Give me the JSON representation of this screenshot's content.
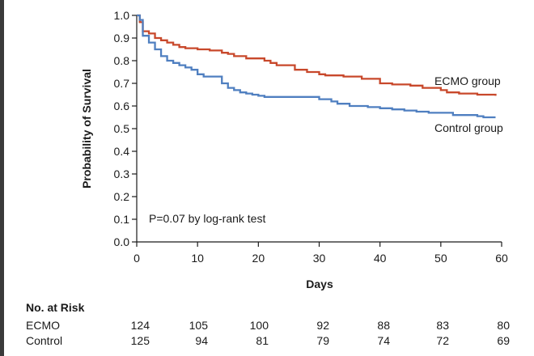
{
  "chart_data": {
    "type": "line",
    "subtype": "kaplan-meier",
    "title": "",
    "xlabel": "Days",
    "ylabel": "Probability of Survival",
    "xlim": [
      0,
      60
    ],
    "ylim": [
      0.0,
      1.0
    ],
    "x_ticks": [
      "0",
      "10",
      "20",
      "30",
      "40",
      "50",
      "60"
    ],
    "y_ticks": [
      "0.0",
      "0.1",
      "0.2",
      "0.3",
      "0.4",
      "0.5",
      "0.6",
      "0.7",
      "0.8",
      "0.9",
      "1.0"
    ],
    "annotation": "P=0.07 by log-rank test",
    "series": [
      {
        "name": "ECMO group",
        "color": "#c8482b",
        "x": [
          0,
          0.5,
          1,
          2,
          3,
          4,
          5,
          6,
          7,
          8,
          10,
          12,
          14,
          15,
          16,
          18,
          21,
          22,
          23,
          26,
          28,
          30,
          31,
          34,
          37,
          40,
          42,
          45,
          47,
          50,
          51,
          53,
          56,
          59
        ],
        "y": [
          1.0,
          0.97,
          0.93,
          0.92,
          0.9,
          0.89,
          0.88,
          0.87,
          0.86,
          0.855,
          0.85,
          0.845,
          0.835,
          0.83,
          0.82,
          0.81,
          0.8,
          0.79,
          0.78,
          0.76,
          0.75,
          0.74,
          0.735,
          0.73,
          0.72,
          0.7,
          0.695,
          0.69,
          0.68,
          0.67,
          0.66,
          0.655,
          0.65,
          0.645
        ]
      },
      {
        "name": "Control group",
        "color": "#4f7fc0",
        "x": [
          0,
          0.5,
          1,
          2,
          3,
          4,
          5,
          6,
          7,
          8,
          9,
          10,
          11,
          14,
          15,
          16,
          17,
          18,
          19,
          20,
          21,
          23,
          30,
          32,
          33,
          35,
          38,
          40,
          42,
          44,
          46,
          48,
          50,
          52,
          56,
          57,
          59
        ],
        "y": [
          1.0,
          0.98,
          0.91,
          0.88,
          0.85,
          0.82,
          0.8,
          0.79,
          0.78,
          0.77,
          0.76,
          0.74,
          0.73,
          0.7,
          0.68,
          0.67,
          0.66,
          0.655,
          0.65,
          0.645,
          0.64,
          0.64,
          0.63,
          0.62,
          0.61,
          0.6,
          0.595,
          0.59,
          0.585,
          0.58,
          0.575,
          0.57,
          0.57,
          0.56,
          0.555,
          0.55,
          0.55
        ]
      }
    ],
    "legend": [
      {
        "text": "ECMO group"
      },
      {
        "text": "Control group"
      }
    ]
  },
  "risk_table": {
    "title": "No. at Risk",
    "days": [
      0,
      10,
      20,
      30,
      40,
      50,
      60
    ],
    "rows": [
      {
        "label": "ECMO",
        "values": [
          "124",
          "105",
          "100",
          "92",
          "88",
          "83",
          "80"
        ]
      },
      {
        "label": "Control",
        "values": [
          "125",
          "94",
          "81",
          "79",
          "74",
          "72",
          "69"
        ]
      }
    ]
  }
}
